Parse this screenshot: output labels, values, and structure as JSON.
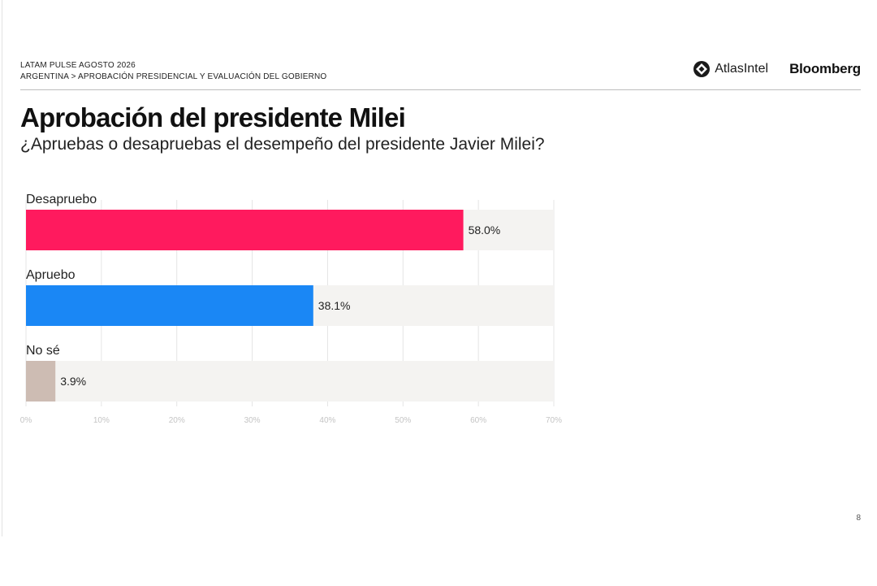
{
  "header": {
    "kicker_line1": "LATAM PULSE AGOSTO 2026",
    "kicker_line2": "ARGENTINA > APROBACIÓN PRESIDENCIAL Y EVALUACIÓN DEL GOBIERNO",
    "brand_atlas": "AtlasIntel",
    "brand_bloomberg": "Bloomberg"
  },
  "footer": {
    "page_number": "8"
  },
  "colors": {
    "track": "#f4f3f1",
    "grid": "#e4e4e4"
  },
  "chart_data": {
    "type": "bar",
    "orientation": "horizontal",
    "title": "Aprobación del presidente Milei",
    "subtitle": "¿Apruebas o desapruebas el desempeño del presidente Javier Milei?",
    "categories": [
      "Desapruebo",
      "Apruebo",
      "No sé"
    ],
    "values": [
      58.0,
      38.1,
      3.9
    ],
    "value_labels": [
      "58.0%",
      "38.1%",
      "3.9%"
    ],
    "colors": [
      "#ff1a5e",
      "#1a87f5",
      "#cdbcb3"
    ],
    "xlim": [
      0,
      70
    ],
    "ticks": [
      0,
      10,
      20,
      30,
      40,
      50,
      60,
      70
    ],
    "tick_labels": [
      "0%",
      "10%",
      "20%",
      "30%",
      "40%",
      "50%",
      "60%",
      "70%"
    ],
    "grid": true,
    "legend": "none"
  }
}
